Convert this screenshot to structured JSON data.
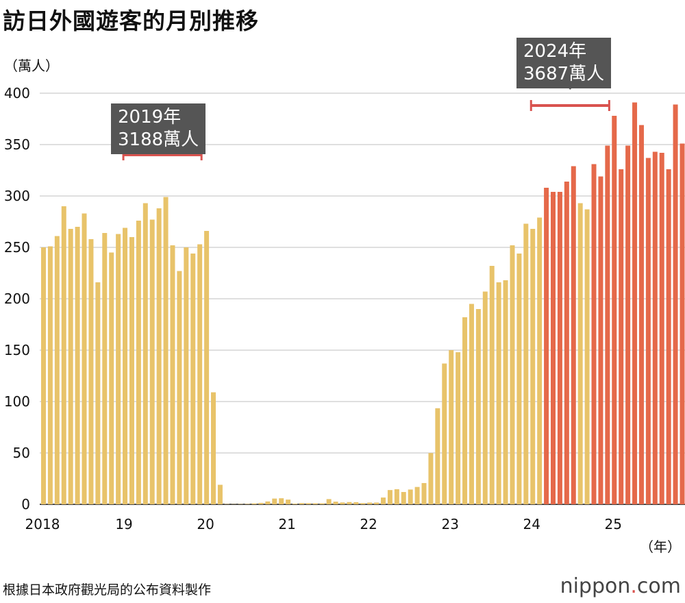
{
  "chart_data": {
    "type": "bar",
    "title": "訪日外國遊客的月別推移",
    "ylabel": "（萬人）",
    "xlabel": "（年）",
    "ylim": [
      0,
      400
    ],
    "yticks": [
      0,
      50,
      100,
      150,
      200,
      250,
      300,
      350,
      400
    ],
    "xtick_labels": [
      "2018",
      "19",
      "20",
      "21",
      "22",
      "23",
      "24",
      "25"
    ],
    "grid": true,
    "start": "2018-01",
    "end": "2025-11",
    "values": [
      250,
      251,
      261,
      290,
      268,
      270,
      283,
      258,
      216,
      264,
      245,
      263,
      269,
      260,
      276,
      293,
      277,
      288,
      299,
      252,
      227,
      250,
      244,
      253,
      266,
      109,
      19,
      0.3,
      0.2,
      0.3,
      0.4,
      0.9,
      1.4,
      2.8,
      5.6,
      5.9,
      4.6,
      0.7,
      1.2,
      1.1,
      1.0,
      1.0,
      5.1,
      2.6,
      1.8,
      2.2,
      2.1,
      1.2,
      1.7,
      1.7,
      6.6,
      13.9,
      14.7,
      12.0,
      14.4,
      16.9,
      20.7,
      49.9,
      93.5,
      137,
      150,
      148,
      182,
      195,
      190,
      207,
      232,
      216,
      218,
      252,
      244,
      273,
      268,
      279,
      308,
      304,
      304,
      314,
      329,
      293,
      287,
      331,
      319,
      349,
      378,
      326,
      349,
      391,
      369,
      337,
      343,
      342,
      326,
      389,
      351
    ],
    "colors": {
      "below_300": "#E8C36A",
      "at_or_above_300": "#E5694A",
      "bracket": "#D9534F",
      "annotation_bg": "#555555"
    },
    "annotations": [
      {
        "line1": "2019年",
        "line2": "3188萬人",
        "span": "2019"
      },
      {
        "line1": "2024年",
        "line2": "3687萬人",
        "span": "2024"
      }
    ]
  },
  "source": "根據日本政府觀光局的公布資料製作",
  "logo": {
    "name": "nippon",
    "dot": ".",
    "suffix": "com"
  }
}
